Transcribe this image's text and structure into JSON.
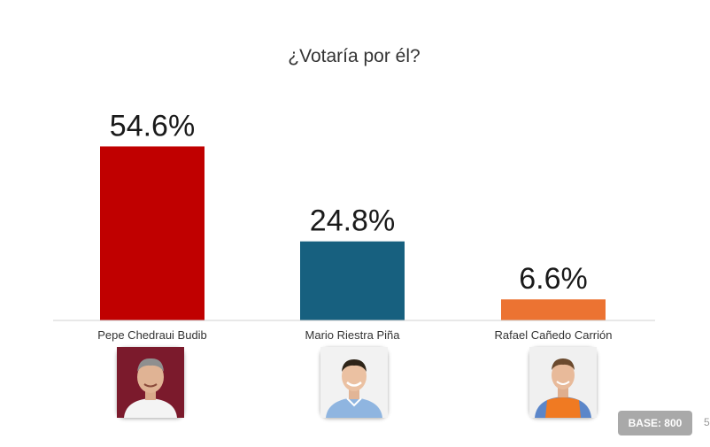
{
  "chart_data": {
    "type": "bar",
    "title": "¿Votaría por él?",
    "categories": [
      "Pepe Chedraui Budib",
      "Mario Riestra Piña",
      "Rafael Cañedo Carrión"
    ],
    "values": [
      54.6,
      24.8,
      6.6
    ],
    "value_labels": [
      "54.6%",
      "24.8%",
      "6.6%"
    ],
    "colors": [
      "#c00000",
      "#17607f",
      "#ec7332"
    ],
    "ylim": [
      0,
      60
    ],
    "grid": false,
    "xlabel": "",
    "ylabel": ""
  },
  "candidates": [
    {
      "photo_icon": "candidate-1-photo",
      "bg_color": "#7b1a2c"
    },
    {
      "photo_icon": "candidate-2-photo",
      "bg_color": "#f2f2f2"
    },
    {
      "photo_icon": "candidate-3-photo",
      "bg_color": "#f0f0f0"
    }
  ],
  "footer": {
    "base_label": "BASE: 800",
    "page_number": "5"
  }
}
